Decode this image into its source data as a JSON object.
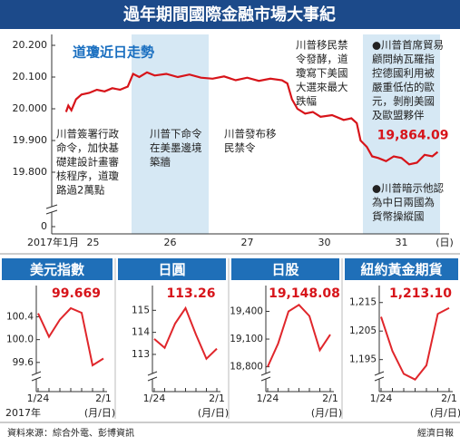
{
  "header": {
    "title": "過年期間國際金融市場大事紀"
  },
  "chart_data": [
    {
      "type": "line",
      "x_prefix": "2017年1月",
      "x_unit": "(日)",
      "categories": [
        "25",
        "26",
        "27",
        "30",
        "31"
      ],
      "column_shading": [
        false,
        true,
        false,
        false,
        true
      ],
      "xlim": [
        0,
        5
      ],
      "x": [
        0.15,
        0.18,
        0.22,
        0.28,
        0.35,
        0.45,
        0.55,
        0.65,
        0.75,
        0.85,
        0.95,
        1.02,
        1.1,
        1.2,
        1.3,
        1.45,
        1.6,
        1.75,
        1.9,
        2.05,
        2.2,
        2.35,
        2.5,
        2.65,
        2.8,
        2.95,
        3.02,
        3.08,
        3.15,
        3.25,
        3.35,
        3.45,
        3.6,
        3.75,
        3.85,
        3.92,
        3.97,
        4.05,
        4.12,
        4.2,
        4.3,
        4.4,
        4.5,
        4.6,
        4.7,
        4.8,
        4.9,
        4.97
      ],
      "series": [
        {
          "name": "道瓊近日走勢",
          "color": "#d7141a",
          "values": [
            19990,
            20010,
            19995,
            20030,
            20045,
            20050,
            20060,
            20055,
            20065,
            20060,
            20070,
            20110,
            20100,
            20115,
            20105,
            20110,
            20100,
            20108,
            20098,
            20095,
            20102,
            20090,
            20098,
            20088,
            20095,
            20090,
            20080,
            20030,
            20000,
            19985,
            19990,
            19975,
            19980,
            19965,
            19970,
            19955,
            19900,
            19880,
            19850,
            19845,
            19835,
            19850,
            19845,
            19825,
            19830,
            19855,
            19850,
            19864.09
          ],
          "value_labels": [
            null,
            null,
            null,
            null,
            null,
            null,
            null,
            null,
            null,
            null,
            null,
            null,
            null,
            null,
            null,
            null,
            null,
            null,
            null,
            null,
            null,
            null,
            null,
            null,
            null,
            null,
            null,
            null,
            null,
            null,
            null,
            null,
            null,
            null,
            null,
            null,
            null,
            null,
            null,
            null,
            null,
            null,
            null,
            null,
            null,
            null,
            null,
            "19,864.09"
          ]
        }
      ],
      "ylim": [
        19730,
        20240
      ],
      "yticks": [
        {
          "value": 20200,
          "label": "20.200"
        },
        {
          "value": 20100,
          "label": "20.100"
        },
        {
          "value": 20000,
          "label": "20.000"
        },
        {
          "value": 19900,
          "label": "19.900"
        },
        {
          "value": 19800,
          "label": "19.800"
        },
        0
      ],
      "annotations": [
        {
          "lines": [
            "川普簽署行政",
            "命令，加快基",
            "礎建設計畫審",
            "核程序，道瓊",
            "路過2萬點"
          ]
        },
        {
          "lines": [
            "川普下命令",
            "在美墨邊境",
            "築牆"
          ]
        },
        {
          "lines": [
            "川普發布移",
            "民禁令"
          ]
        },
        {
          "lines": [
            "川普移民禁",
            "令發酵，道",
            "瓊寫下美國",
            "大選來最大",
            "跌幅"
          ]
        },
        {
          "lines": [
            "●川普首席貿易",
            "顧問納瓦羅指",
            "控德國利用被",
            "嚴重低估的歐",
            "元，剝削美國",
            "及歐盟夥伴"
          ]
        },
        {
          "lines": [
            "●川普暗示他認",
            "為中日兩國為",
            "貨幣操縱國"
          ]
        }
      ]
    },
    {
      "type": "line",
      "title": "美元指數",
      "x_unit": "(月/日)",
      "x_prefix": "2017年",
      "categories": [
        "1/24",
        null,
        null,
        null,
        null,
        null,
        "2/1"
      ],
      "series": [
        {
          "name": "美元指數",
          "color": "#e0262b",
          "values": [
            100.46,
            100.05,
            100.35,
            100.55,
            100.47,
            99.55,
            99.669
          ],
          "value_labels": [
            null,
            null,
            null,
            null,
            null,
            null,
            "99.669"
          ]
        }
      ],
      "ylim": [
        99.2,
        100.9
      ],
      "yticks": [
        100.4,
        {
          "value": 100,
          "label": "100.0"
        },
        99.6
      ]
    },
    {
      "type": "line",
      "title": "日圓",
      "x_unit": "(月/日)",
      "categories": [
        "1/24",
        null,
        null,
        null,
        null,
        null,
        "2/1"
      ],
      "series": [
        {
          "name": "日圓",
          "color": "#e0262b",
          "values": [
            113.7,
            113.3,
            114.4,
            115.1,
            113.9,
            112.8,
            113.26
          ],
          "value_labels": [
            null,
            null,
            null,
            null,
            null,
            null,
            "113.26"
          ]
        }
      ],
      "ylim": [
        111.6,
        116
      ],
      "yticks": [
        115,
        114,
        113
      ]
    },
    {
      "type": "line",
      "title": "日股",
      "x_unit": "(月/日)",
      "categories": [
        "1/24",
        null,
        null,
        null,
        null,
        null,
        "2/1"
      ],
      "series": [
        {
          "name": "日股",
          "color": "#e0262b",
          "values": [
            18800,
            19050,
            19400,
            19470,
            19350,
            18980,
            19148.08
          ],
          "value_labels": [
            null,
            null,
            null,
            null,
            null,
            null,
            "19,148.08"
          ]
        }
      ],
      "ylim": [
        18600,
        19650
      ],
      "yticks": [
        {
          "value": 19400,
          "label": "19,400"
        },
        {
          "value": 19100,
          "label": "19,100"
        },
        {
          "value": 18800,
          "label": "18,800"
        }
      ]
    },
    {
      "type": "line",
      "title": "紐約黃金期貨",
      "x_unit": "(月/日)",
      "categories": [
        "1/24",
        null,
        null,
        null,
        null,
        null,
        "2/1"
      ],
      "series": [
        {
          "name": "紐約黃金期貨",
          "color": "#e0262b",
          "values": [
            1210,
            1198,
            1190,
            1188,
            1193,
            1211,
            1213.1
          ],
          "value_labels": [
            null,
            null,
            null,
            null,
            null,
            null,
            "1,213.10"
          ]
        }
      ],
      "ylim": [
        1186,
        1220
      ],
      "yticks": [
        {
          "value": 1215,
          "label": "1,215"
        },
        {
          "value": 1205,
          "label": "1,205"
        },
        {
          "value": 1195,
          "label": "1,195"
        }
      ]
    }
  ],
  "source": "資料來源：綜合外電、彭博資訊",
  "publisher": "經濟日報"
}
